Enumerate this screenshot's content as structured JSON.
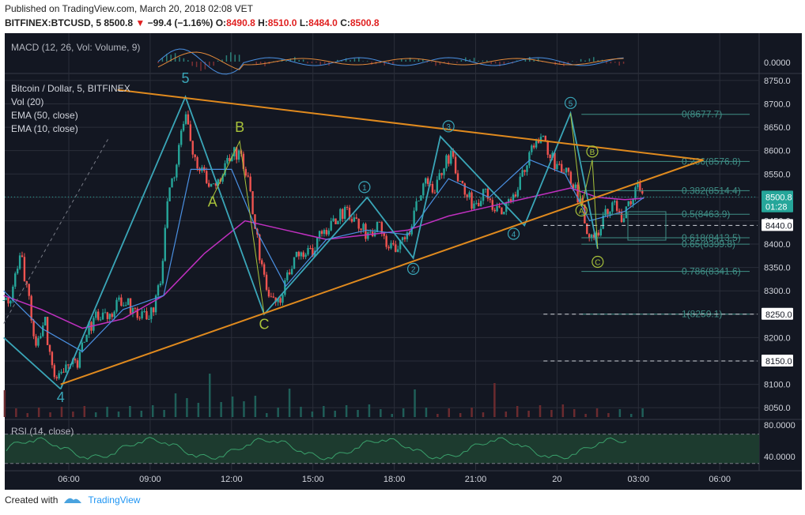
{
  "header": {
    "published": "Published on TradingView.com, March 20, 2018 02:08 VET",
    "symbol": "BITFINEX:BTCUSD, 5",
    "last": "8500.8",
    "change": "−99.4 (−1.16%)",
    "o_label": "O:",
    "o": "8490.8",
    "h_label": "H:",
    "h": "8510.0",
    "l_label": "L:",
    "l": "8484.0",
    "c_label": "C:",
    "c": "8500.8"
  },
  "footer": {
    "created_with": "Created with",
    "brand": "TradingView"
  },
  "colors": {
    "background": "#131722",
    "grid": "#2a2e39",
    "up": "#26a69a",
    "down": "#ef5350",
    "ema50": "#c030c0",
    "ema10": "#4a90e2",
    "trend": "#e08a1e",
    "wave": "#3aa6b8",
    "fib": "#3f8f86",
    "text": "#b2b5be"
  },
  "chart_data": {
    "type": "candlestick",
    "title": "Bitcoin / Dollar, 5, BITFINEX",
    "indicators": [
      "Vol (20)",
      "EMA (50, close)",
      "EMA (10, close)"
    ],
    "macd_label": "MACD (12, 26, Vol: Volume, 9)",
    "macd_tick": "0.0000",
    "rsi_label": "RSI (14, close)",
    "rsi_ticks": [
      "80.0000",
      "40.0000"
    ],
    "rsi_levels": [
      70,
      30
    ],
    "rsi_range": [
      20,
      90
    ],
    "ylim": [
      8030,
      8760
    ],
    "y_ticks": [
      8050,
      8100,
      8150,
      8200,
      8250,
      8300,
      8350,
      8400,
      8450,
      8500,
      8550,
      8600,
      8650,
      8700,
      8750
    ],
    "y_tick_labels": [
      "8050.0",
      "8100.0",
      "8150.0",
      "8200.0",
      "8250.0",
      "8300.0",
      "8350.0",
      "8400.0",
      "8450.0",
      "8500.0",
      "8550.0",
      "8600.0",
      "8650.0",
      "8700.0",
      "8750.0"
    ],
    "xlim": [
      3.5,
      7.4
    ],
    "x_ticks": [
      6,
      9,
      12,
      15,
      18,
      21,
      24,
      27,
      30
    ],
    "x_tick_labels": [
      "06:00",
      "09:00",
      "12:00",
      "15:00",
      "18:00",
      "21:00",
      "20",
      "03:00",
      "06:00"
    ],
    "price_series": [
      [
        3.6,
        8280
      ],
      [
        3.9,
        8290
      ],
      [
        4.2,
        8380
      ],
      [
        4.5,
        8300
      ],
      [
        4.8,
        8170
      ],
      [
        5.1,
        8240
      ],
      [
        5.4,
        8130
      ],
      [
        5.7,
        8110
      ],
      [
        6.0,
        8160
      ],
      [
        6.3,
        8140
      ],
      [
        6.6,
        8200
      ],
      [
        7.0,
        8250
      ],
      [
        7.4,
        8240
      ],
      [
        7.8,
        8280
      ],
      [
        8.2,
        8270
      ],
      [
        8.6,
        8250
      ],
      [
        9.0,
        8240
      ],
      [
        9.4,
        8330
      ],
      [
        9.7,
        8520
      ],
      [
        9.9,
        8560
      ],
      [
        10.1,
        8620
      ],
      [
        10.3,
        8690
      ],
      [
        10.5,
        8600
      ],
      [
        10.9,
        8560
      ],
      [
        11.3,
        8510
      ],
      [
        11.7,
        8560
      ],
      [
        12.0,
        8590
      ],
      [
        12.3,
        8600
      ],
      [
        12.6,
        8540
      ],
      [
        12.9,
        8420
      ],
      [
        13.2,
        8330
      ],
      [
        13.5,
        8270
      ],
      [
        13.8,
        8290
      ],
      [
        14.1,
        8340
      ],
      [
        14.4,
        8370
      ],
      [
        14.7,
        8390
      ],
      [
        15.0,
        8380
      ],
      [
        15.3,
        8420
      ],
      [
        15.6,
        8440
      ],
      [
        15.9,
        8450
      ],
      [
        16.2,
        8480
      ],
      [
        16.5,
        8450
      ],
      [
        16.8,
        8430
      ],
      [
        17.1,
        8420
      ],
      [
        17.4,
        8440
      ],
      [
        17.7,
        8410
      ],
      [
        18.0,
        8390
      ],
      [
        18.3,
        8400
      ],
      [
        18.6,
        8440
      ],
      [
        18.9,
        8500
      ],
      [
        19.2,
        8530
      ],
      [
        19.5,
        8520
      ],
      [
        19.8,
        8560
      ],
      [
        20.1,
        8600
      ],
      [
        20.4,
        8530
      ],
      [
        20.7,
        8500
      ],
      [
        21.0,
        8480
      ],
      [
        21.3,
        8510
      ],
      [
        21.6,
        8490
      ],
      [
        21.9,
        8470
      ],
      [
        22.2,
        8480
      ],
      [
        22.5,
        8520
      ],
      [
        22.8,
        8560
      ],
      [
        23.1,
        8600
      ],
      [
        23.4,
        8640
      ],
      [
        23.7,
        8590
      ],
      [
        24.0,
        8570
      ],
      [
        24.3,
        8560
      ],
      [
        24.6,
        8520
      ],
      [
        24.9,
        8490
      ],
      [
        25.2,
        8400
      ],
      [
        25.5,
        8430
      ],
      [
        25.8,
        8470
      ],
      [
        26.1,
        8480
      ],
      [
        26.4,
        8460
      ],
      [
        26.7,
        8490
      ],
      [
        27.0,
        8520
      ],
      [
        27.2,
        8500
      ]
    ],
    "ema50": [
      [
        3.6,
        8290
      ],
      [
        5.0,
        8260
      ],
      [
        6.5,
        8220
      ],
      [
        8.0,
        8240
      ],
      [
        9.5,
        8290
      ],
      [
        11.0,
        8380
      ],
      [
        12.5,
        8450
      ],
      [
        14.0,
        8430
      ],
      [
        15.5,
        8410
      ],
      [
        17.0,
        8420
      ],
      [
        18.5,
        8430
      ],
      [
        20.0,
        8460
      ],
      [
        21.5,
        8480
      ],
      [
        23.0,
        8500
      ],
      [
        24.5,
        8520
      ],
      [
        25.5,
        8500
      ],
      [
        26.5,
        8495
      ],
      [
        27.2,
        8498
      ]
    ],
    "ema10": [
      [
        3.6,
        8300
      ],
      [
        5.0,
        8220
      ],
      [
        6.5,
        8170
      ],
      [
        8.0,
        8260
      ],
      [
        9.5,
        8290
      ],
      [
        10.5,
        8560
      ],
      [
        12.0,
        8560
      ],
      [
        13.0,
        8420
      ],
      [
        14.0,
        8310
      ],
      [
        15.5,
        8410
      ],
      [
        17.0,
        8430
      ],
      [
        18.5,
        8420
      ],
      [
        20.0,
        8540
      ],
      [
        21.5,
        8500
      ],
      [
        23.0,
        8580
      ],
      [
        24.3,
        8550
      ],
      [
        25.2,
        8450
      ],
      [
        26.5,
        8470
      ],
      [
        27.2,
        8500
      ]
    ],
    "trendline_upper": [
      [
        7.8,
        8730
      ],
      [
        29.4,
        8580
      ]
    ],
    "trendline_lower": [
      [
        5.7,
        8100
      ],
      [
        29.4,
        8580
      ]
    ],
    "elliott_5_waves": [
      [
        5.7,
        8090
      ],
      [
        10.3,
        8715
      ],
      [
        13.2,
        8250
      ],
      [
        17.0,
        8500
      ],
      [
        18.7,
        8370
      ],
      [
        19.7,
        8630
      ],
      [
        22.8,
        8440
      ],
      [
        24.5,
        8680
      ],
      [
        25.5,
        8390
      ]
    ],
    "wave_labels": [
      {
        "text": "5",
        "x": 10.3,
        "y": 8745,
        "color": "#3aa6b8"
      },
      {
        "text": "4",
        "x": 5.7,
        "y": 8062,
        "color": "#3aa6b8"
      },
      {
        "text": "A",
        "x": 11.3,
        "y": 8480,
        "color": "#a8c23a"
      },
      {
        "text": "B",
        "x": 12.3,
        "y": 8640,
        "color": "#a8c23a"
      },
      {
        "text": "C",
        "x": 13.2,
        "y": 8218,
        "color": "#a8c23a"
      }
    ],
    "circle_labels": [
      {
        "text": "1",
        "x": 16.9,
        "y": 8522,
        "color": "#3aa6b8"
      },
      {
        "text": "2",
        "x": 18.7,
        "y": 8347,
        "color": "#3aa6b8"
      },
      {
        "text": "3",
        "x": 20.0,
        "y": 8652,
        "color": "#3aa6b8"
      },
      {
        "text": "4",
        "x": 22.4,
        "y": 8422,
        "color": "#3aa6b8"
      },
      {
        "text": "5",
        "x": 24.5,
        "y": 8702,
        "color": "#3aa6b8"
      },
      {
        "text": "B",
        "x": 25.3,
        "y": 8598,
        "color": "#a8c23a"
      },
      {
        "text": "A",
        "x": 24.9,
        "y": 8472,
        "color": "#a8c23a"
      },
      {
        "text": "C",
        "x": 25.5,
        "y": 8362,
        "color": "#a8c23a"
      }
    ],
    "fib_levels": [
      {
        "label": "0(8677.7)",
        "value": 8677.7
      },
      {
        "label": "0.236(8576.8)",
        "value": 8576.8
      },
      {
        "label": "0.382(8514.4)",
        "value": 8514.4
      },
      {
        "label": "0.5(8463.9)",
        "value": 8463.9
      },
      {
        "label": "0.618(8413.5)",
        "value": 8413.5
      },
      {
        "label": "0.65(8399.8)",
        "value": 8399.8
      },
      {
        "label": "0.786(8341.6)",
        "value": 8341.6
      },
      {
        "label": "1(8250.1)",
        "value": 8250.1
      }
    ],
    "price_tags": [
      {
        "label": "8500.8",
        "value": 8500.8,
        "color": "#26a69a"
      },
      {
        "label": "01:28",
        "value": 8480,
        "color": "#26a69a"
      },
      {
        "label": "8440.0",
        "value": 8440.0,
        "color": "#ffffff"
      },
      {
        "label": "8250.0",
        "value": 8250.0,
        "color": "#ffffff"
      },
      {
        "label": "8150.0",
        "value": 8150.0,
        "color": "#ffffff"
      }
    ],
    "last_price": 8500.8
  }
}
